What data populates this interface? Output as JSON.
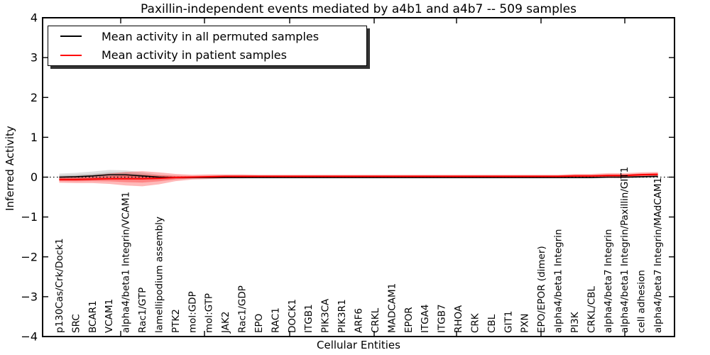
{
  "chart_data": {
    "type": "line",
    "title": "Paxillin-independent events mediated by a4b1 and a4b7 -- 509 samples",
    "xlabel": "Cellular Entities",
    "ylabel": "Inferred Activity",
    "ylim": [
      -4,
      4
    ],
    "yticks": [
      4,
      3,
      2,
      1,
      0,
      -1,
      -2,
      -3,
      -4
    ],
    "ytick_labels": [
      "4",
      "3",
      "2",
      "1",
      "0",
      "−1",
      "−2",
      "−3",
      "−4"
    ],
    "grid": false,
    "zero_line": {
      "y": 0,
      "style": "dotted",
      "color": "#000000"
    },
    "legend": {
      "position": "upper left",
      "shadow": true,
      "entries": [
        {
          "label": "Mean activity in all permuted samples",
          "color": "#000000"
        },
        {
          "label": "Mean activity in patient samples",
          "color": "#ff0000"
        }
      ]
    },
    "categories": [
      "p130Cas/Crk/Dock1",
      "SRC",
      "BCAR1",
      "VCAM1",
      "alpha4/beta1 Integrin/VCAM1",
      "Rac1/GTP",
      "lamellipodium assembly",
      "PTK2",
      "mol:GDP",
      "mol:GTP",
      "JAK2",
      "Rac1/GDP",
      "EPO",
      "RAC1",
      "DOCK1",
      "ITGB1",
      "PIK3CA",
      "PIK3R1",
      "ARF6",
      "CRKL",
      "MADCAM1",
      "EPOR",
      "ITGA4",
      "ITGB7",
      "RHOA",
      "CRK",
      "CBL",
      "GIT1",
      "PXN",
      "EPO/EPOR (dimer)",
      "alpha4/beta1 Integrin",
      "PI3K",
      "CRKL/CBL",
      "alpha4/beta7 Integrin",
      "alpha4/beta1 Integrin/Paxillin/GIT1",
      "cell adhesion",
      "alpha4/beta7 Integrin/MAdCAM1"
    ],
    "series": [
      {
        "name": "Mean activity in all permuted samples",
        "color": "#000000",
        "band_color": "rgba(60,60,60,0.16)",
        "values": [
          0.0,
          0.01,
          0.03,
          0.06,
          0.06,
          0.03,
          0.0,
          -0.01,
          -0.01,
          -0.01,
          -0.01,
          -0.01,
          -0.01,
          -0.01,
          -0.01,
          -0.01,
          -0.01,
          -0.01,
          -0.01,
          -0.01,
          -0.01,
          -0.01,
          -0.01,
          -0.01,
          -0.01,
          -0.01,
          -0.01,
          -0.01,
          -0.01,
          -0.01,
          -0.01,
          -0.01,
          -0.01,
          0.0,
          0.0,
          0.01,
          0.02
        ],
        "band_halfwidth": [
          0.09,
          0.1,
          0.11,
          0.12,
          0.11,
          0.09,
          0.06,
          0.04,
          0.03,
          0.02,
          0.02,
          0.02,
          0.02,
          0.02,
          0.02,
          0.02,
          0.02,
          0.02,
          0.02,
          0.02,
          0.02,
          0.02,
          0.02,
          0.02,
          0.02,
          0.02,
          0.02,
          0.02,
          0.02,
          0.02,
          0.02,
          0.02,
          0.02,
          0.02,
          0.03,
          0.03,
          0.04
        ]
      },
      {
        "name": "Mean activity in patient samples",
        "color": "#ff0000",
        "band_color": "rgba(255,0,0,0.28)",
        "values": [
          -0.06,
          -0.06,
          -0.05,
          -0.04,
          -0.04,
          -0.04,
          -0.03,
          -0.01,
          0.0,
          0.01,
          0.02,
          0.02,
          0.02,
          0.02,
          0.02,
          0.02,
          0.02,
          0.02,
          0.02,
          0.02,
          0.02,
          0.02,
          0.02,
          0.02,
          0.02,
          0.02,
          0.02,
          0.02,
          0.02,
          0.02,
          0.02,
          0.03,
          0.03,
          0.04,
          0.04,
          0.06,
          0.07
        ],
        "band_halfwidth": [
          0.08,
          0.09,
          0.1,
          0.13,
          0.17,
          0.19,
          0.15,
          0.09,
          0.06,
          0.06,
          0.05,
          0.05,
          0.04,
          0.04,
          0.04,
          0.04,
          0.04,
          0.04,
          0.04,
          0.04,
          0.04,
          0.04,
          0.04,
          0.04,
          0.04,
          0.04,
          0.04,
          0.04,
          0.04,
          0.04,
          0.04,
          0.05,
          0.05,
          0.06,
          0.06,
          0.06,
          0.06
        ]
      }
    ]
  }
}
